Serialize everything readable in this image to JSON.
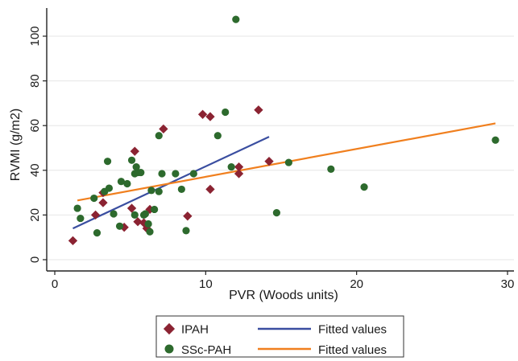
{
  "chart_data": {
    "type": "scatter",
    "xlabel": "PVR (Woods units)",
    "ylabel": "RVMI (g/m2)",
    "xlim": [
      0,
      30
    ],
    "ylim": [
      0,
      100
    ],
    "xticks": [
      0,
      10,
      20,
      30
    ],
    "yticks": [
      0,
      20,
      40,
      60,
      80,
      100
    ],
    "grid": "horizontal",
    "legend_position": "bottom",
    "series": [
      {
        "name": "IPAH",
        "marker": "diamond",
        "color": "#8b2332",
        "points": [
          [
            1.2,
            8.5
          ],
          [
            2.7,
            20
          ],
          [
            3.2,
            25.5
          ],
          [
            3.2,
            30
          ],
          [
            4.6,
            14.5
          ],
          [
            5.1,
            23
          ],
          [
            5.3,
            48.5
          ],
          [
            5.5,
            17
          ],
          [
            5.9,
            16.5
          ],
          [
            6.1,
            14
          ],
          [
            6.3,
            22.5
          ],
          [
            7.2,
            58.5
          ],
          [
            8.8,
            19.5
          ],
          [
            9.8,
            65
          ],
          [
            10.3,
            64
          ],
          [
            10.3,
            31.5
          ],
          [
            12.2,
            41.5
          ],
          [
            12.2,
            38.5
          ],
          [
            13.5,
            67
          ],
          [
            14.2,
            44
          ]
        ]
      },
      {
        "name": "SSc-PAH",
        "marker": "circle",
        "color": "#2d6a2d",
        "points": [
          [
            1.5,
            23
          ],
          [
            1.7,
            18.5
          ],
          [
            2.6,
            27.5
          ],
          [
            2.8,
            12
          ],
          [
            3.3,
            30.5
          ],
          [
            3.5,
            44
          ],
          [
            3.6,
            32
          ],
          [
            3.9,
            20.5
          ],
          [
            4.3,
            15
          ],
          [
            4.4,
            35
          ],
          [
            4.8,
            34
          ],
          [
            5.1,
            44.5
          ],
          [
            5.3,
            20
          ],
          [
            5.3,
            38.5
          ],
          [
            5.4,
            41.5
          ],
          [
            5.5,
            39
          ],
          [
            5.7,
            39
          ],
          [
            5.9,
            20
          ],
          [
            6.0,
            20.5
          ],
          [
            6.2,
            16
          ],
          [
            6.3,
            12.5
          ],
          [
            6.4,
            31
          ],
          [
            6.6,
            22.5
          ],
          [
            6.9,
            30.5
          ],
          [
            6.9,
            55.5
          ],
          [
            7.1,
            38.5
          ],
          [
            8.0,
            38.5
          ],
          [
            8.4,
            31.5
          ],
          [
            8.7,
            13
          ],
          [
            9.2,
            38.5
          ],
          [
            10.8,
            55.5
          ],
          [
            11.3,
            66
          ],
          [
            11.7,
            41.5
          ],
          [
            12.0,
            107.5
          ],
          [
            14.7,
            21
          ],
          [
            15.5,
            43.5
          ],
          [
            18.3,
            40.5
          ],
          [
            20.5,
            32.5
          ],
          [
            29.2,
            53.5
          ]
        ]
      }
    ],
    "fits": [
      {
        "name": "Fitted values",
        "color": "#3a4ea0",
        "x": [
          1.2,
          14.2
        ],
        "y": [
          14,
          55
        ]
      },
      {
        "name": "Fitted values",
        "color": "#f07f1e",
        "x": [
          1.5,
          29.2
        ],
        "y": [
          26.5,
          61
        ]
      }
    ]
  }
}
